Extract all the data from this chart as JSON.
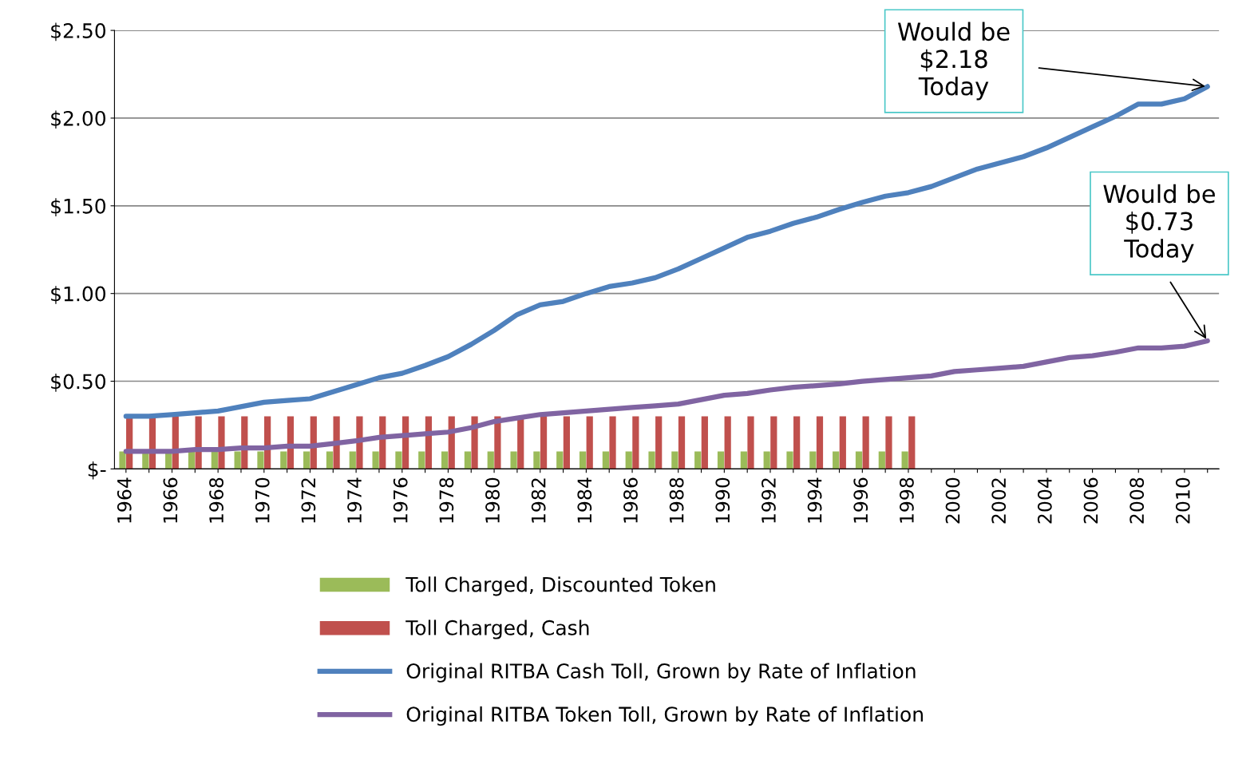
{
  "chart_data": {
    "type": "bar",
    "categories": [
      "1964",
      null,
      "1966",
      null,
      "1968",
      null,
      "1970",
      null,
      "1972",
      null,
      "1974",
      null,
      "1976",
      null,
      "1978",
      null,
      "1980",
      null,
      "1982",
      null,
      "1984",
      null,
      "1986",
      null,
      "1988",
      null,
      "1990",
      null,
      "1992",
      null,
      "1994",
      null,
      "1996",
      null,
      "1998",
      null,
      "2000",
      null,
      "2002",
      null,
      "2004",
      null,
      "2006",
      null,
      "2008",
      null,
      "2010",
      null
    ],
    "series": [
      {
        "name": "Toll Charged, Discounted Token",
        "color": "#9bbb59",
        "values": [
          0.1,
          0.1,
          0.1,
          0.1,
          0.1,
          0.1,
          0.1,
          0.1,
          0.1,
          0.1,
          0.1,
          0.1,
          0.1,
          0.1,
          0.1,
          0.1,
          0.1,
          0.1,
          0.1,
          0.1,
          0.1,
          0.1,
          0.1,
          0.1,
          0.1,
          0.1,
          0.1,
          0.1,
          0.1,
          0.1,
          0.1,
          0.1,
          0.1,
          0.1,
          0.1,
          null,
          null,
          null,
          null,
          null,
          null,
          null,
          null,
          null,
          null,
          null,
          null,
          null
        ]
      },
      {
        "name": "Toll Charged, Cash",
        "color": "#c0504d",
        "values": [
          0.3,
          0.3,
          0.3,
          0.3,
          0.3,
          0.3,
          0.3,
          0.3,
          0.3,
          0.3,
          0.3,
          0.3,
          0.3,
          0.3,
          0.3,
          0.3,
          0.3,
          0.3,
          0.3,
          0.3,
          0.3,
          0.3,
          0.3,
          0.3,
          0.3,
          0.3,
          0.3,
          0.3,
          0.3,
          0.3,
          0.3,
          0.3,
          0.3,
          0.3,
          0.3,
          null,
          null,
          null,
          null,
          null,
          null,
          null,
          null,
          null,
          null,
          null,
          null,
          null
        ]
      },
      {
        "name": "Original RITBA Cash Toll, Grown by Rate of Inflation",
        "color": "#4f81bd",
        "type": "line",
        "values": [
          0.3,
          0.3,
          0.31,
          0.32,
          0.33,
          0.355,
          0.38,
          0.39,
          0.4,
          0.44,
          0.48,
          0.52,
          0.545,
          0.59,
          0.64,
          0.71,
          0.79,
          0.88,
          0.935,
          0.955,
          1.0,
          1.04,
          1.06,
          1.09,
          1.14,
          1.2,
          1.26,
          1.32,
          1.355,
          1.4,
          1.435,
          1.48,
          1.52,
          1.555,
          1.575,
          1.61,
          1.66,
          1.71,
          1.745,
          1.78,
          1.83,
          1.89,
          1.95,
          2.01,
          2.08,
          2.08,
          2.11,
          2.18
        ]
      },
      {
        "name": "Original RITBA Token Toll, Grown by Rate of Inflation",
        "color": "#8064a2",
        "type": "line",
        "values": [
          0.1,
          0.1,
          0.1,
          0.11,
          0.11,
          0.12,
          0.12,
          0.13,
          0.13,
          0.145,
          0.16,
          0.18,
          0.19,
          0.2,
          0.21,
          0.235,
          0.27,
          0.29,
          0.31,
          0.32,
          0.33,
          0.34,
          0.35,
          0.36,
          0.37,
          0.395,
          0.42,
          0.43,
          0.45,
          0.465,
          0.475,
          0.485,
          0.5,
          0.51,
          0.52,
          0.53,
          0.555,
          0.565,
          0.575,
          0.585,
          0.61,
          0.635,
          0.645,
          0.665,
          0.69,
          0.69,
          0.7,
          0.73
        ]
      }
    ],
    "ylim": [
      0,
      2.5
    ],
    "yticks": [
      {
        "value": 0,
        "label": "$-"
      },
      {
        "value": 0.5,
        "label": "$0.50"
      },
      {
        "value": 1.0,
        "label": "$1.00"
      },
      {
        "value": 1.5,
        "label": "$1.50"
      },
      {
        "value": 2.0,
        "label": "$2.00"
      },
      {
        "value": 2.5,
        "label": "$2.50"
      }
    ],
    "grid": "y",
    "legend": "bottom",
    "annotations": [
      "Would be\n$2.18\nToday",
      "Would be\n$0.73\nToday"
    ]
  }
}
